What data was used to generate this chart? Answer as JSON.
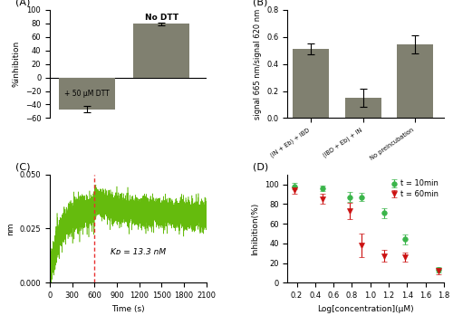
{
  "panel_A": {
    "values": [
      -47,
      79
    ],
    "errors": [
      5,
      2
    ],
    "bar_color": "#808070",
    "ylabel": "%inhibition",
    "ylim": [
      -60,
      100
    ],
    "yticks": [
      -60,
      -40,
      -20,
      0,
      20,
      40,
      60,
      80,
      100
    ],
    "ann_dtt": "+ 50 μM DTT",
    "ann_nodtt": "No DTT"
  },
  "panel_B": {
    "categories": [
      "(IN + Eb) + IBD",
      "(IBD + Eb) + IN",
      "No preincubation"
    ],
    "values": [
      0.51,
      0.15,
      0.545
    ],
    "errors": [
      0.04,
      0.07,
      0.065
    ],
    "bar_color": "#808070",
    "ylabel": "signal 665 nm/signal 620 nm",
    "ylim": [
      0,
      0.8
    ],
    "yticks": [
      0.0,
      0.2,
      0.4,
      0.6,
      0.8
    ]
  },
  "panel_C": {
    "ylabel": "nm",
    "xlabel": "Time (s)",
    "ylim": [
      0,
      0.05
    ],
    "yticks": [
      0.0,
      0.025,
      0.05
    ],
    "xlim": [
      0,
      2100
    ],
    "xticks": [
      0,
      300,
      600,
      900,
      1200,
      1500,
      1800,
      2100
    ],
    "vline_x": 600,
    "kd_text": "Kᴅ = 13.3 nM",
    "line_color": "#5db800",
    "vline_color": "#e83030",
    "noise_amp_assoc": 0.0035,
    "noise_amp_dissoc": 0.003
  },
  "panel_D": {
    "xlabel": "Log[concentration](μM)",
    "ylabel": "Inhibition(%)",
    "xlim": [
      0.1,
      1.8
    ],
    "ylim": [
      0,
      110
    ],
    "yticks": [
      0,
      20,
      40,
      60,
      80,
      100
    ],
    "xticks": [
      0.2,
      0.4,
      0.6,
      0.8,
      1.0,
      1.2,
      1.4,
      1.6,
      1.8
    ],
    "xticklabels": [
      "0.2",
      "0.4",
      "0.6",
      "0.8",
      "1.0",
      "1.2",
      "1.4",
      "1.6",
      "1.8"
    ],
    "series": [
      {
        "label": "t = 10min",
        "color": "#3ab54a",
        "marker": "o",
        "x": [
          0.176,
          0.477,
          0.778,
          0.903,
          1.146,
          1.38,
          1.74
        ],
        "y": [
          98,
          96,
          87,
          87,
          71,
          44,
          13
        ],
        "yerr": [
          3,
          3,
          5,
          4,
          5,
          5,
          3
        ],
        "ic50": 1.55,
        "hill": 2.5
      },
      {
        "label": "t = 60min",
        "color": "#cc1111",
        "marker": "v",
        "x": [
          0.176,
          0.477,
          0.778,
          0.903,
          1.146,
          1.38,
          1.74
        ],
        "y": [
          94,
          85,
          73,
          38,
          27,
          26,
          12
        ],
        "yerr": [
          4,
          5,
          8,
          12,
          6,
          5,
          3
        ],
        "ic50": 1.0,
        "hill": 2.8
      }
    ]
  },
  "fig_bg": "#ffffff",
  "panel_label_fontsize": 8,
  "axis_fontsize": 6.5,
  "tick_fontsize": 6
}
